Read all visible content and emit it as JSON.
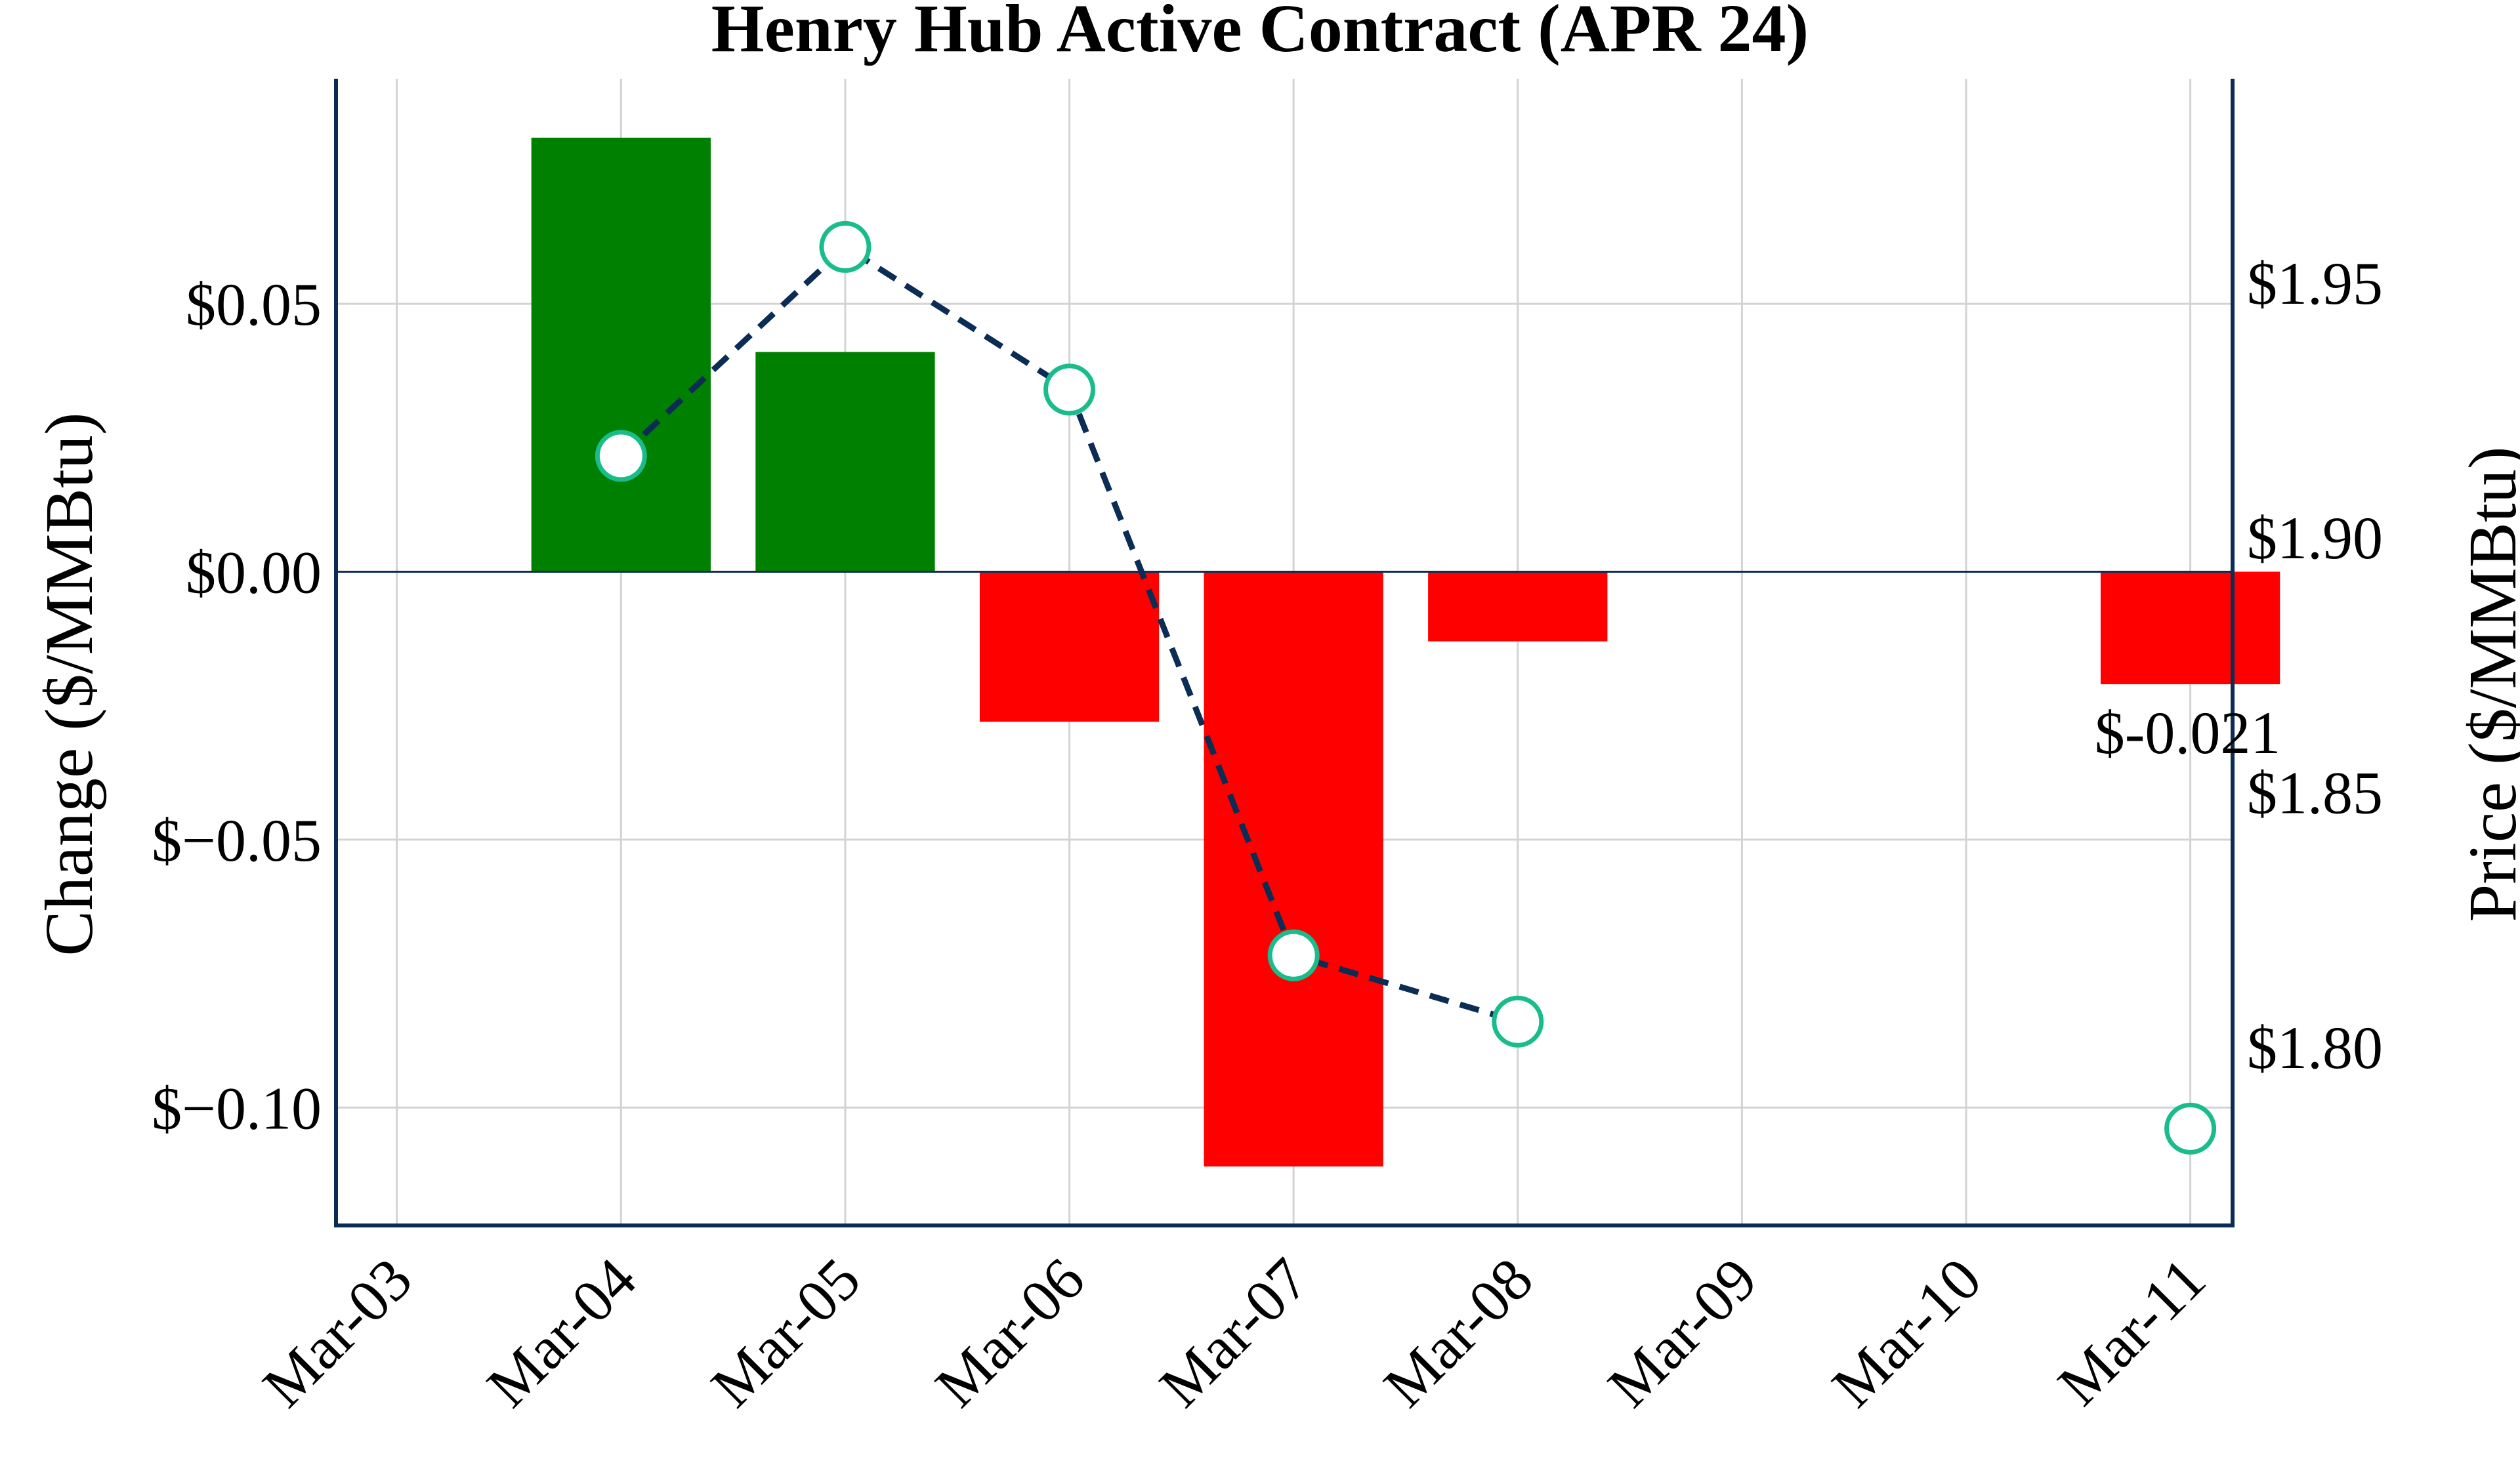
{
  "chart_data": {
    "type": "bar",
    "title": "Henry Hub Active Contract (APR 24)",
    "xlabel": "",
    "ylabel": "Change ($/MMBtu)",
    "y2label": "Price ($/MMBtu)",
    "categories": [
      "Mar-03",
      "Mar-04",
      "Mar-05",
      "Mar-06",
      "Mar-07",
      "Mar-08",
      "Mar-09",
      "Mar-10",
      "Mar-11"
    ],
    "series": [
      {
        "kind": "bar",
        "axis": "left",
        "values": [
          null,
          0.081,
          0.041,
          -0.028,
          -0.111,
          -0.013,
          null,
          null,
          -0.021
        ],
        "positive_color": "#008000",
        "negative_color": "#ff0000"
      },
      {
        "kind": "line",
        "axis": "right",
        "style": "dashed",
        "marker": "open-circle",
        "values": [
          null,
          1.916,
          1.957,
          1.929,
          1.818,
          1.805,
          null,
          null,
          1.784
        ],
        "line_color": "#0b2c55",
        "marker_edge_color": "#1abc8c"
      }
    ],
    "ylim": [
      -0.122,
      0.092
    ],
    "y2lim": [
      1.765,
      1.99
    ],
    "yticks": [
      "$0.05",
      "$0.00",
      "$−0.05",
      "$−0.10"
    ],
    "ytick_values": [
      0.05,
      0.0,
      -0.05,
      -0.1
    ],
    "y2ticks": [
      "$1.95",
      "$1.90",
      "$1.85",
      "$1.80"
    ],
    "y2tick_values": [
      1.95,
      1.9,
      1.85,
      1.8
    ],
    "annotations": [
      {
        "text": "$-0.021",
        "category": "Mar-11",
        "value": -0.021
      }
    ],
    "grid": true,
    "axis_color": "#0b2c55",
    "grid_color": "#d3d3d3"
  }
}
